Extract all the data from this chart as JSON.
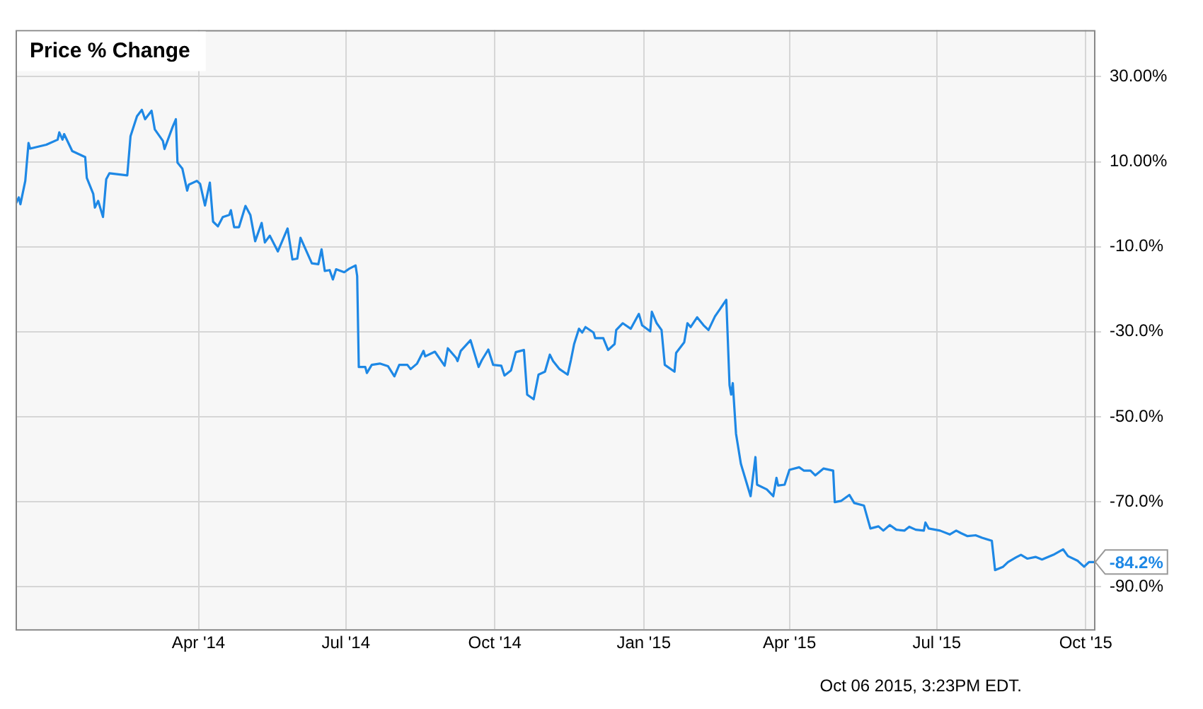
{
  "chart_data": {
    "type": "line",
    "title": "Price % Change",
    "x": [
      "2013-12-09",
      "2013-12-11",
      "2013-12-12",
      "2013-12-15",
      "2013-12-17",
      "2013-12-18",
      "2013-12-28",
      "2014-01-04",
      "2014-01-05",
      "2014-01-07",
      "2014-01-08",
      "2014-01-13",
      "2014-01-21",
      "2014-01-22",
      "2014-01-26",
      "2014-01-27",
      "2014-01-29",
      "2014-02-01",
      "2014-02-03",
      "2014-02-05",
      "2014-02-16",
      "2014-02-18",
      "2014-02-22",
      "2014-02-25",
      "2014-02-27",
      "2014-03-03",
      "2014-03-05",
      "2014-03-10",
      "2014-03-11",
      "2014-03-16",
      "2014-03-18",
      "2014-03-19",
      "2014-03-22",
      "2014-03-25",
      "2014-03-26",
      "2014-03-31",
      "2014-04-02",
      "2014-04-05",
      "2014-04-08",
      "2014-04-10",
      "2014-04-13",
      "2014-04-16",
      "2014-04-20",
      "2014-04-21",
      "2014-04-23",
      "2014-04-26",
      "2014-04-30",
      "2014-05-03",
      "2014-05-06",
      "2014-05-10",
      "2014-05-12",
      "2014-05-15",
      "2014-05-20",
      "2014-05-26",
      "2014-05-29",
      "2014-06-01",
      "2014-06-03",
      "2014-06-10",
      "2014-06-14",
      "2014-06-16",
      "2014-06-18",
      "2014-06-21",
      "2014-06-23",
      "2014-06-25",
      "2014-06-30",
      "2014-07-03",
      "2014-07-07",
      "2014-07-08",
      "2014-07-09",
      "2014-07-13",
      "2014-07-14",
      "2014-07-17",
      "2014-07-22",
      "2014-07-27",
      "2014-07-31",
      "2014-08-03",
      "2014-08-08",
      "2014-08-10",
      "2014-08-14",
      "2014-08-18",
      "2014-08-19",
      "2014-08-25",
      "2014-08-31",
      "2014-09-02",
      "2014-09-07",
      "2014-09-08",
      "2014-09-10",
      "2014-09-16",
      "2014-09-21",
      "2014-09-23",
      "2014-09-27",
      "2014-09-30",
      "2014-10-05",
      "2014-10-07",
      "2014-10-11",
      "2014-10-14",
      "2014-10-19",
      "2014-10-21",
      "2014-10-25",
      "2014-10-28",
      "2014-11-01",
      "2014-11-04",
      "2014-11-06",
      "2014-11-10",
      "2014-11-15",
      "2014-11-17",
      "2014-11-19",
      "2014-11-22",
      "2014-11-24",
      "2014-11-26",
      "2014-12-01",
      "2014-12-02",
      "2014-12-07",
      "2014-12-10",
      "2014-12-14",
      "2014-12-15",
      "2014-12-19",
      "2014-12-24",
      "2014-12-29",
      "2014-12-31",
      "2015-01-05",
      "2015-01-06",
      "2015-01-09",
      "2015-01-12",
      "2015-01-14",
      "2015-01-20",
      "2015-01-21",
      "2015-01-26",
      "2015-01-28",
      "2015-01-30",
      "2015-02-03",
      "2015-02-07",
      "2015-02-10",
      "2015-02-14",
      "2015-02-21",
      "2015-02-23",
      "2015-02-24",
      "2015-02-25",
      "2015-02-27",
      "2015-03-02",
      "2015-03-08",
      "2015-03-11",
      "2015-03-12",
      "2015-03-18",
      "2015-03-22",
      "2015-03-24",
      "2015-03-25",
      "2015-03-29",
      "2015-04-01",
      "2015-04-07",
      "2015-04-10",
      "2015-04-14",
      "2015-04-17",
      "2015-04-22",
      "2015-04-28",
      "2015-04-29",
      "2015-05-03",
      "2015-05-08",
      "2015-05-11",
      "2015-05-17",
      "2015-05-21",
      "2015-05-26",
      "2015-05-29",
      "2015-06-02",
      "2015-06-06",
      "2015-06-11",
      "2015-06-14",
      "2015-06-18",
      "2015-06-23",
      "2015-06-24",
      "2015-06-26",
      "2015-07-03",
      "2015-07-09",
      "2015-07-13",
      "2015-07-16",
      "2015-07-20",
      "2015-07-25",
      "2015-07-29",
      "2015-08-04",
      "2015-08-06",
      "2015-08-11",
      "2015-08-14",
      "2015-08-19",
      "2015-08-22",
      "2015-08-26",
      "2015-08-31",
      "2015-09-04",
      "2015-09-11",
      "2015-09-17",
      "2015-09-20",
      "2015-09-26",
      "2015-09-30",
      "2015-10-03",
      "2015-10-06"
    ],
    "series": [
      {
        "color": "#1e88e5",
        "values": [
          0,
          1.6,
          0,
          5.5,
          14.4,
          13.1,
          14,
          15.2,
          16.9,
          15.2,
          16.5,
          12.5,
          11.1,
          6.2,
          2.4,
          -0.8,
          0.8,
          -3,
          5.9,
          7.3,
          6.8,
          16,
          20.7,
          22.2,
          20,
          22,
          17.6,
          14.9,
          13,
          18.2,
          20,
          9.8,
          8.4,
          3.2,
          4.6,
          5.5,
          4.8,
          -0.3,
          5.1,
          -4.1,
          -5.2,
          -3,
          -2.5,
          -1.4,
          -5.4,
          -5.4,
          -0.4,
          -2.5,
          -8.7,
          -4.4,
          -9,
          -7.4,
          -11.1,
          -5.7,
          -13,
          -12.8,
          -7.9,
          -13.9,
          -14.1,
          -10.6,
          -15.7,
          -15.5,
          -17.7,
          -15.3,
          -16,
          -15.2,
          -14.4,
          -16.9,
          -38.3,
          -38.3,
          -39.7,
          -37.8,
          -37.5,
          -38.1,
          -40.5,
          -37.8,
          -37.8,
          -38.8,
          -37.5,
          -34.5,
          -35.8,
          -34.7,
          -38,
          -33.9,
          -36.1,
          -36.9,
          -34.5,
          -32,
          -38.3,
          -36.7,
          -34.2,
          -37.8,
          -38,
          -40.3,
          -39.1,
          -34.8,
          -34.3,
          -44.8,
          -45.9,
          -40.1,
          -39.4,
          -35.4,
          -36.9,
          -38.8,
          -40.1,
          -36.7,
          -32.9,
          -29.3,
          -30.2,
          -28.9,
          -30.2,
          -31.5,
          -31.5,
          -34.3,
          -32.9,
          -29.6,
          -28,
          -29.3,
          -25.8,
          -28.5,
          -29.9,
          -25.3,
          -28,
          -29.6,
          -37.8,
          -39.4,
          -35,
          -32.5,
          -28,
          -28.9,
          -26.6,
          -28.5,
          -29.6,
          -26.4,
          -22.5,
          -42.6,
          -44.8,
          -42.1,
          -54,
          -61.1,
          -68.7,
          -59.5,
          -66,
          -67.1,
          -68.7,
          -64.4,
          -66.2,
          -66,
          -62.5,
          -61.9,
          -62.7,
          -62.7,
          -63.8,
          -62.2,
          -62.7,
          -70.1,
          -69.8,
          -68.4,
          -70.3,
          -70.9,
          -76.3,
          -75.8,
          -76.8,
          -75.5,
          -76.6,
          -76.8,
          -75.9,
          -76.6,
          -76.8,
          -74.9,
          -76.3,
          -76.8,
          -77.7,
          -76.8,
          -77.4,
          -78.1,
          -77.9,
          -78.5,
          -79.2,
          -86.1,
          -85.3,
          -84.2,
          -83.1,
          -82.5,
          -83.4,
          -83,
          -83.6,
          -82.5,
          -81.2,
          -82.8,
          -83.9,
          -85.3,
          -84.2,
          -84.2
        ]
      }
    ],
    "xlim": [
      "2013-12-09",
      "2015-10-07"
    ],
    "xticks": [
      {
        "value": "2014-04-01",
        "label": "Apr '14"
      },
      {
        "value": "2014-07-01",
        "label": "Jul '14"
      },
      {
        "value": "2014-10-01",
        "label": "Oct '14"
      },
      {
        "value": "2015-01-01",
        "label": "Jan '15"
      },
      {
        "value": "2015-04-01",
        "label": "Apr '15"
      },
      {
        "value": "2015-07-01",
        "label": "Jul '15"
      },
      {
        "value": "2015-10-01",
        "label": "Oct '15"
      }
    ],
    "ylim": [
      -100,
      41
    ],
    "yticks": [
      {
        "value": 30,
        "label": "30.00%"
      },
      {
        "value": 10,
        "label": "10.00%"
      },
      {
        "value": -10,
        "label": "-10.0%"
      },
      {
        "value": -30,
        "label": "-30.0%"
      },
      {
        "value": -50,
        "label": "-50.0%"
      },
      {
        "value": -70,
        "label": "-70.0%"
      },
      {
        "value": -90,
        "label": "-90.0%"
      }
    ],
    "grid": true,
    "legend": false,
    "marker": "none",
    "line_style": "solid",
    "annotations": [
      {
        "text": "-84.2%",
        "x": "2015-10-06",
        "y": -84.2
      },
      "Oct 06 2015, 3:23PM EDT."
    ]
  }
}
